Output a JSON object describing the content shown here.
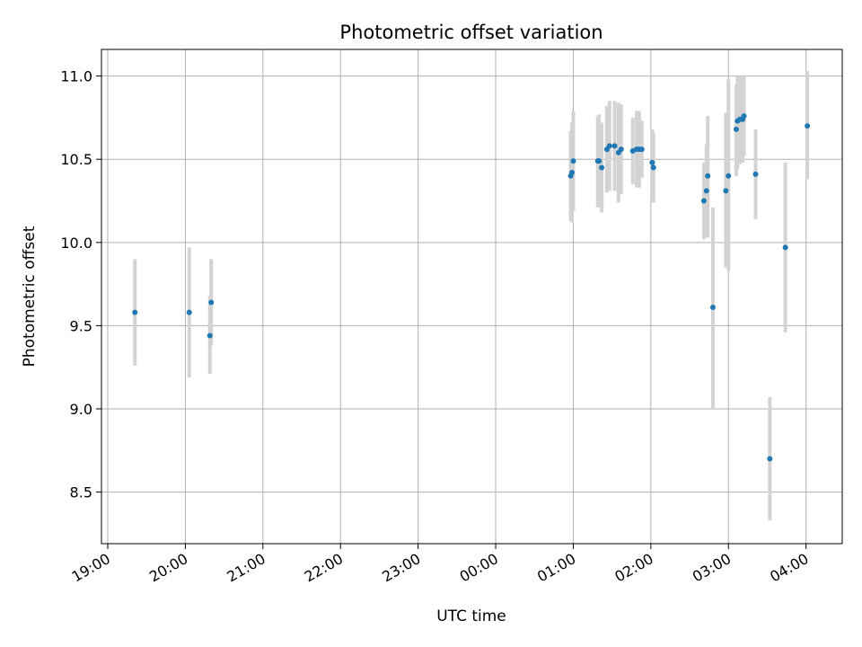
{
  "chart_data": {
    "type": "scatter",
    "title": "Photometric offset variation",
    "xlabel": "UTC time",
    "ylabel": "Photometric offset",
    "grid": true,
    "x_tick_labels": [
      "19:00",
      "20:00",
      "21:00",
      "22:00",
      "23:00",
      "00:00",
      "01:00",
      "02:00",
      "03:00",
      "04:00"
    ],
    "y_tick_labels": [
      "8.5",
      "9.0",
      "9.5",
      "10.0",
      "10.5",
      "11.0"
    ],
    "xlim": [
      "19:00",
      "04:28"
    ],
    "ylim": [
      8.19,
      11.16
    ],
    "colors": {
      "point": "#1f77b4",
      "errorbar": "#d3d3d3",
      "grid": "#b0b0b0"
    },
    "series": [
      {
        "marker": "point",
        "error_bars": true,
        "points": [
          {
            "x": "19:21",
            "y": 9.58,
            "lo": 9.26,
            "hi": 9.9
          },
          {
            "x": "20:03",
            "y": 9.58,
            "lo": 9.19,
            "hi": 9.97
          },
          {
            "x": "20:19",
            "y": 9.44,
            "lo": 9.21,
            "hi": 9.68
          },
          {
            "x": "20:20",
            "y": 9.64,
            "lo": 9.38,
            "hi": 9.9
          },
          {
            "x": "00:58",
            "y": 10.4,
            "lo": 10.13,
            "hi": 10.67
          },
          {
            "x": "00:59",
            "y": 10.42,
            "lo": 10.12,
            "hi": 10.72
          },
          {
            "x": "01:00",
            "y": 10.49,
            "lo": 10.19,
            "hi": 10.79
          },
          {
            "x": "01:19",
            "y": 10.49,
            "lo": 10.21,
            "hi": 10.76
          },
          {
            "x": "01:20",
            "y": 10.49,
            "lo": 10.22,
            "hi": 10.77
          },
          {
            "x": "01:22",
            "y": 10.45,
            "lo": 10.18,
            "hi": 10.72
          },
          {
            "x": "01:26",
            "y": 10.56,
            "lo": 10.3,
            "hi": 10.82
          },
          {
            "x": "01:28",
            "y": 10.58,
            "lo": 10.31,
            "hi": 10.85
          },
          {
            "x": "01:32",
            "y": 10.58,
            "lo": 10.31,
            "hi": 10.85
          },
          {
            "x": "01:35",
            "y": 10.54,
            "lo": 10.24,
            "hi": 10.84
          },
          {
            "x": "01:37",
            "y": 10.56,
            "lo": 10.29,
            "hi": 10.83
          },
          {
            "x": "01:46",
            "y": 10.55,
            "lo": 10.35,
            "hi": 10.75
          },
          {
            "x": "01:49",
            "y": 10.56,
            "lo": 10.33,
            "hi": 10.79
          },
          {
            "x": "01:51",
            "y": 10.56,
            "lo": 10.33,
            "hi": 10.79
          },
          {
            "x": "01:53",
            "y": 10.56,
            "lo": 10.39,
            "hi": 10.73
          },
          {
            "x": "02:01",
            "y": 10.48,
            "lo": 10.28,
            "hi": 10.68
          },
          {
            "x": "02:02",
            "y": 10.45,
            "lo": 10.24,
            "hi": 10.66
          },
          {
            "x": "02:41",
            "y": 10.25,
            "lo": 10.02,
            "hi": 10.48
          },
          {
            "x": "02:43",
            "y": 10.31,
            "lo": 10.03,
            "hi": 10.59
          },
          {
            "x": "02:44",
            "y": 10.4,
            "lo": 10.03,
            "hi": 10.76
          },
          {
            "x": "02:48",
            "y": 9.61,
            "lo": 9.0,
            "hi": 10.21
          },
          {
            "x": "02:58",
            "y": 10.31,
            "lo": 9.85,
            "hi": 10.78
          },
          {
            "x": "03:00",
            "y": 10.4,
            "lo": 9.83,
            "hi": 10.98
          },
          {
            "x": "03:06",
            "y": 10.68,
            "lo": 10.4,
            "hi": 10.95
          },
          {
            "x": "03:07",
            "y": 10.73,
            "lo": 10.44,
            "hi": 11.0
          },
          {
            "x": "03:09",
            "y": 10.74,
            "lo": 10.47,
            "hi": 11.0
          },
          {
            "x": "03:11",
            "y": 10.74,
            "lo": 10.48,
            "hi": 11.0
          },
          {
            "x": "03:12",
            "y": 10.76,
            "lo": 10.52,
            "hi": 11.0
          },
          {
            "x": "03:21",
            "y": 10.41,
            "lo": 10.14,
            "hi": 10.68
          },
          {
            "x": "03:32",
            "y": 8.7,
            "lo": 8.33,
            "hi": 9.07
          },
          {
            "x": "03:44",
            "y": 9.97,
            "lo": 9.46,
            "hi": 10.48
          },
          {
            "x": "04:01",
            "y": 10.7,
            "lo": 10.38,
            "hi": 11.03
          }
        ]
      }
    ]
  }
}
